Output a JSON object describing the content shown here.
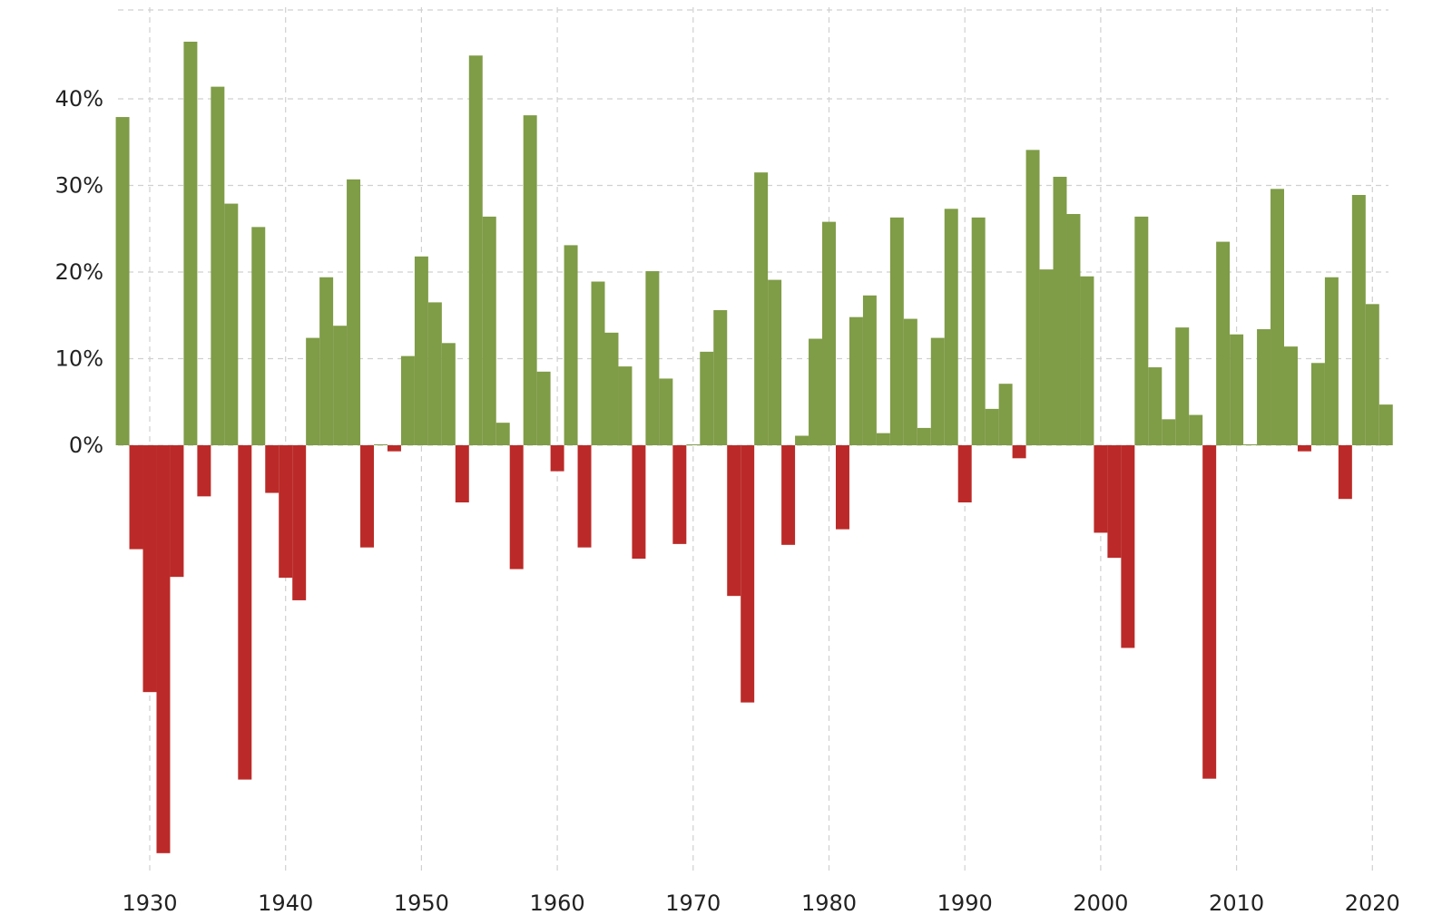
{
  "chart_data": {
    "type": "bar",
    "title": "",
    "xlabel": "",
    "ylabel": "",
    "x": [
      1928,
      1929,
      1930,
      1931,
      1932,
      1933,
      1934,
      1935,
      1936,
      1937,
      1938,
      1939,
      1940,
      1941,
      1942,
      1943,
      1944,
      1945,
      1946,
      1947,
      1948,
      1949,
      1950,
      1951,
      1952,
      1953,
      1954,
      1955,
      1956,
      1957,
      1958,
      1959,
      1960,
      1961,
      1962,
      1963,
      1964,
      1965,
      1966,
      1967,
      1968,
      1969,
      1970,
      1971,
      1972,
      1973,
      1974,
      1975,
      1976,
      1977,
      1978,
      1979,
      1980,
      1981,
      1982,
      1983,
      1984,
      1985,
      1986,
      1987,
      1988,
      1989,
      1990,
      1991,
      1992,
      1993,
      1994,
      1995,
      1996,
      1997,
      1998,
      1999,
      2000,
      2001,
      2002,
      2003,
      2004,
      2005,
      2006,
      2007,
      2008,
      2009,
      2010,
      2011,
      2012,
      2013,
      2014,
      2015,
      2016,
      2017,
      2018,
      2019,
      2020,
      2021
    ],
    "values": [
      37.9,
      -12.0,
      -28.5,
      -47.1,
      -15.2,
      46.6,
      -5.9,
      41.4,
      27.9,
      -38.6,
      25.2,
      -5.5,
      -15.3,
      -17.9,
      12.4,
      19.4,
      13.8,
      30.7,
      -11.8,
      0.0,
      -0.7,
      10.3,
      21.8,
      16.5,
      11.8,
      -6.6,
      45.0,
      26.4,
      2.6,
      -14.3,
      38.1,
      8.5,
      -3.0,
      23.1,
      -11.8,
      18.9,
      13.0,
      9.1,
      -13.1,
      20.1,
      7.7,
      -11.4,
      0.1,
      10.8,
      15.6,
      -17.4,
      -29.7,
      31.5,
      19.1,
      -11.5,
      1.1,
      12.3,
      25.8,
      -9.7,
      14.8,
      17.3,
      1.4,
      26.3,
      14.6,
      2.0,
      12.4,
      27.3,
      -6.6,
      26.3,
      4.2,
      7.1,
      -1.5,
      34.1,
      20.3,
      31.0,
      26.7,
      19.5,
      -10.1,
      -13.0,
      -23.4,
      26.4,
      9.0,
      3.0,
      13.6,
      3.5,
      -38.5,
      23.5,
      12.8,
      0.0,
      13.4,
      29.6,
      11.4,
      -0.7,
      9.5,
      19.4,
      -6.2,
      28.9,
      16.3,
      4.7
    ],
    "x_ticks": [
      "1930",
      "1940",
      "1950",
      "1960",
      "1970",
      "1980",
      "1990",
      "2000",
      "2010",
      "2020"
    ],
    "y_ticks": [
      "0%",
      "10%",
      "20%",
      "30%",
      "40%"
    ],
    "ylim": [
      -50,
      50
    ],
    "grid": true,
    "legend": "none",
    "colors": {
      "positive": "#7f9c47",
      "negative": "#bb2a28",
      "grid": "#d0d0d0",
      "text": "#222222"
    }
  }
}
